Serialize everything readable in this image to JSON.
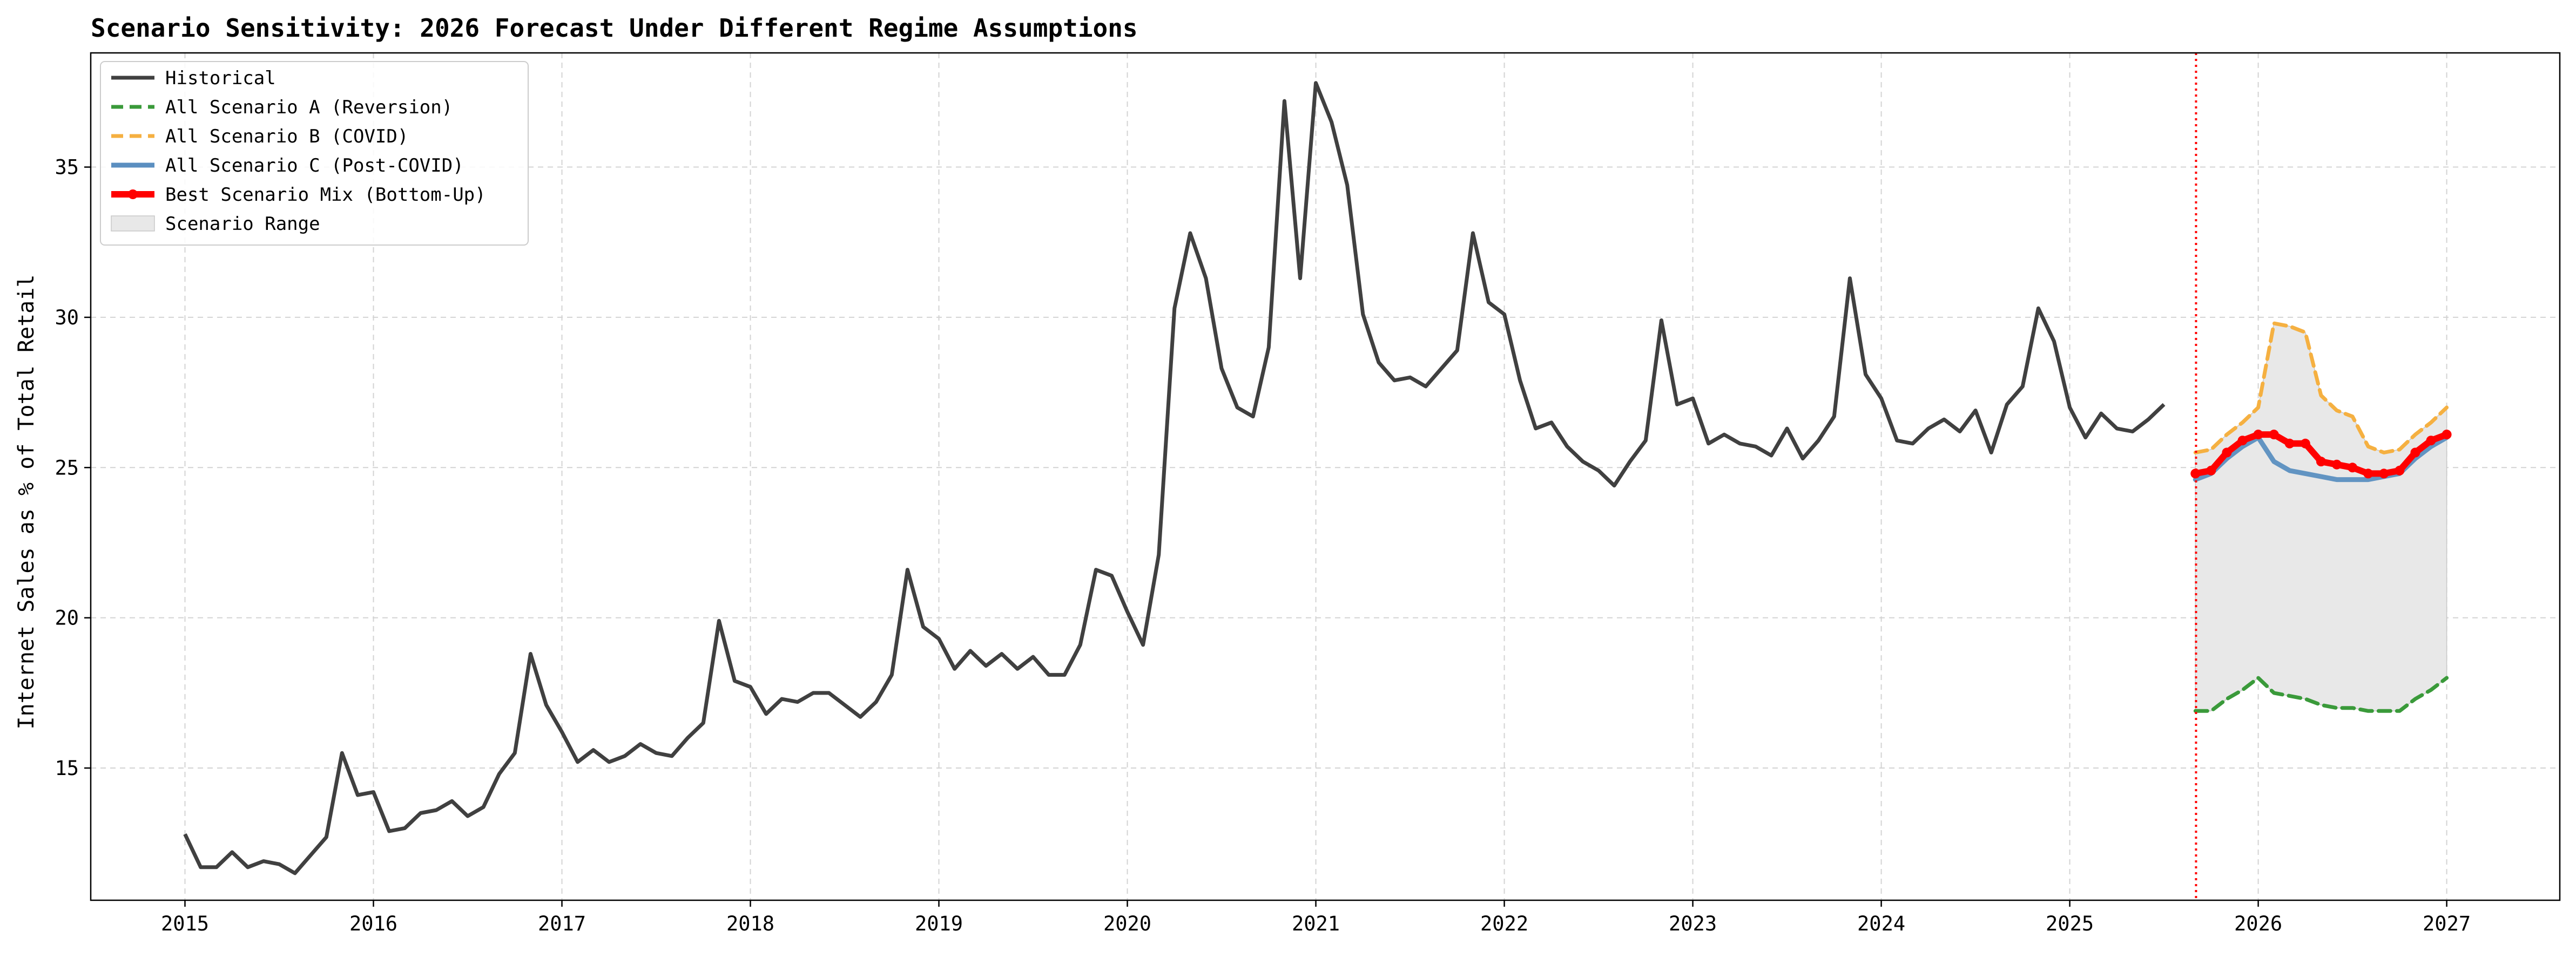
{
  "chart_data": {
    "type": "line",
    "title": "Scenario Sensitivity: 2026 Forecast Under Different Regime Assumptions",
    "xlabel": "",
    "ylabel": "Internet Sales as % of Total Retail",
    "xlim": [
      2014.5,
      2027.6
    ],
    "ylim": [
      10.6,
      38.8
    ],
    "x_ticks": [
      2015,
      2016,
      2017,
      2018,
      2019,
      2020,
      2021,
      2022,
      2023,
      2024,
      2025,
      2026,
      2027
    ],
    "x_tick_labels": [
      "2015",
      "2016",
      "2017",
      "2018",
      "2019",
      "2020",
      "2021",
      "2022",
      "2023",
      "2024",
      "2025",
      "2026",
      "2027"
    ],
    "y_ticks": [
      15,
      20,
      25,
      30,
      35
    ],
    "y_tick_labels": [
      "15",
      "20",
      "25",
      "30",
      "35"
    ],
    "grid": true,
    "legend_position": "top-left",
    "forecast_start_marker": 2025.67,
    "colors": {
      "historical": "#404040",
      "scenario_a": "#3a9a3a",
      "scenario_b": "#f5b041",
      "scenario_c": "#5b8fc0",
      "best_mix": "#ff0000",
      "range_fill": "#e8e8e8",
      "range_edge": "#c8c8c8",
      "forecast_line": "#ff0000",
      "grid": "#d3d3d3"
    },
    "series": [
      {
        "key": "historical",
        "name": "Historical",
        "start": "2015-01",
        "values": [
          12.8,
          11.7,
          11.7,
          12.2,
          11.7,
          11.9,
          11.8,
          11.5,
          12.1,
          12.7,
          15.5,
          14.1,
          14.2,
          12.9,
          13.0,
          13.5,
          13.6,
          13.9,
          13.4,
          13.7,
          14.8,
          15.5,
          18.8,
          17.1,
          16.2,
          15.2,
          15.6,
          15.2,
          15.4,
          15.8,
          15.5,
          15.4,
          16.0,
          16.5,
          19.9,
          17.9,
          17.7,
          16.8,
          17.3,
          17.2,
          17.5,
          17.5,
          17.1,
          16.7,
          17.2,
          18.1,
          21.6,
          19.7,
          19.3,
          18.3,
          18.9,
          18.4,
          18.8,
          18.3,
          18.7,
          18.1,
          18.1,
          19.1,
          21.6,
          21.4,
          20.2,
          19.1,
          22.1,
          30.3,
          32.8,
          31.3,
          28.3,
          27.0,
          26.7,
          29.0,
          37.2,
          31.3,
          37.8,
          36.5,
          34.4,
          30.1,
          28.5,
          27.9,
          28.0,
          27.7,
          28.3,
          28.9,
          32.8,
          30.5,
          30.1,
          27.9,
          26.3,
          26.5,
          25.7,
          25.2,
          24.9,
          24.4,
          25.2,
          25.9,
          29.9,
          27.1,
          27.3,
          25.8,
          26.1,
          25.8,
          25.7,
          25.4,
          26.3,
          25.3,
          25.9,
          26.7,
          31.3,
          28.1,
          27.3,
          25.9,
          25.8,
          26.3,
          26.6,
          26.2,
          26.9,
          25.5,
          27.1,
          27.7,
          30.3,
          29.2,
          27.0,
          26.0,
          26.8,
          26.3,
          26.2,
          26.6,
          27.1
        ]
      },
      {
        "key": "scenario_a",
        "name": "All Scenario A (Reversion)",
        "start": "2025-09",
        "values": [
          16.9,
          16.9,
          17.3,
          17.6,
          18.0,
          17.5,
          17.4,
          17.3,
          17.1,
          17.0,
          17.0,
          16.9,
          16.9,
          16.9,
          17.3,
          17.6,
          18.0
        ]
      },
      {
        "key": "scenario_b",
        "name": "All Scenario B (COVID)",
        "start": "2025-09",
        "values": [
          25.5,
          25.6,
          26.1,
          26.5,
          27.0,
          29.8,
          29.7,
          29.5,
          27.4,
          26.9,
          26.7,
          25.7,
          25.5,
          25.6,
          26.1,
          26.5,
          27.0
        ]
      },
      {
        "key": "scenario_c",
        "name": "All Scenario C (Post-COVID)",
        "start": "2025-09",
        "values": [
          24.6,
          24.8,
          25.3,
          25.7,
          26.0,
          25.2,
          24.9,
          24.8,
          24.7,
          24.6,
          24.6,
          24.6,
          24.7,
          24.8,
          25.3,
          25.7,
          26.0
        ]
      },
      {
        "key": "best_mix",
        "name": "Best Scenario Mix (Bottom-Up)",
        "start": "2025-09",
        "values": [
          24.8,
          24.9,
          25.5,
          25.9,
          26.1,
          26.1,
          25.8,
          25.8,
          25.2,
          25.1,
          25.0,
          24.8,
          24.8,
          24.9,
          25.5,
          25.9,
          26.1
        ]
      }
    ],
    "range_band": {
      "name": "Scenario Range",
      "start": "2025-09",
      "lower": [
        16.9,
        16.9,
        17.3,
        17.6,
        18.0,
        17.5,
        17.4,
        17.3,
        17.1,
        17.0,
        17.0,
        16.9,
        16.9,
        16.9,
        17.3,
        17.6,
        18.0
      ],
      "upper": [
        25.5,
        25.6,
        26.1,
        26.5,
        27.0,
        29.8,
        29.7,
        29.5,
        27.4,
        26.9,
        26.7,
        25.7,
        25.5,
        25.6,
        26.1,
        26.5,
        27.0
      ]
    },
    "legend": [
      {
        "key": "historical",
        "label": "Historical",
        "style": "solid"
      },
      {
        "key": "scenario_a",
        "label": "All Scenario A (Reversion)",
        "style": "dashed"
      },
      {
        "key": "scenario_b",
        "label": "All Scenario B (COVID)",
        "style": "dashed"
      },
      {
        "key": "scenario_c",
        "label": "All Scenario C (Post-COVID)",
        "style": "solid"
      },
      {
        "key": "best_mix",
        "label": "Best Scenario Mix (Bottom-Up)",
        "style": "marker-line"
      },
      {
        "key": "range_fill",
        "label": "Scenario Range",
        "style": "patch"
      }
    ]
  }
}
